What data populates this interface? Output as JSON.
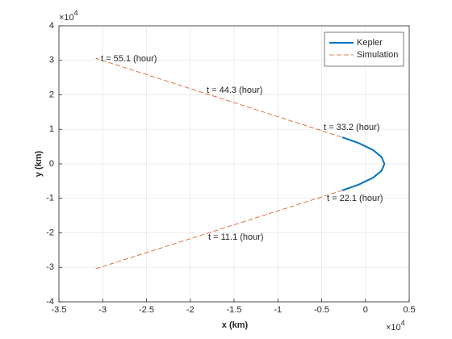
{
  "chart_data": {
    "type": "line",
    "xlabel": "x (km)",
    "ylabel": "y (km)",
    "x_exponent": {
      "base": "×10",
      "power": "4"
    },
    "y_exponent": {
      "base": "×10",
      "power": "4"
    },
    "xlim": [
      -3.5,
      0.5
    ],
    "xticks": [
      -3.5,
      -3,
      -2.5,
      -2,
      -1.5,
      -1,
      -0.5,
      0,
      0.5
    ],
    "ylim": [
      -4,
      4
    ],
    "yticks": [
      -4,
      -3,
      -2,
      -1,
      0,
      1,
      2,
      3,
      4
    ],
    "grid": true,
    "legend": "northeast",
    "series": [
      {
        "name": "Kepler",
        "color": "#0072bd",
        "style": "solid",
        "x": [
          -0.265,
          -0.076,
          0.087,
          0.184,
          0.217,
          0.184,
          0.087,
          -0.076,
          -0.265
        ],
        "values": [
          -0.77,
          -0.6,
          -0.4,
          -0.2,
          0,
          0.2,
          0.4,
          0.6,
          0.77
        ]
      },
      {
        "name": "Simulation",
        "color": "#d95319",
        "style": "dashed",
        "x": [
          -3.08,
          -0.265,
          -0.076,
          0.087,
          0.184,
          0.217,
          0.184,
          0.087,
          -0.076,
          -0.265,
          -3.08
        ],
        "values": [
          -3.04,
          -0.77,
          -0.6,
          -0.4,
          -0.2,
          0,
          0.2,
          0.4,
          0.6,
          0.77,
          3.06
        ]
      }
    ],
    "annotations": [
      "t =  11.1 (hour)",
      "t =  22.1 (hour)",
      "t =  33.2 (hour)",
      "t =  44.3 (hour)",
      "t =  55.1 (hour)"
    ]
  }
}
